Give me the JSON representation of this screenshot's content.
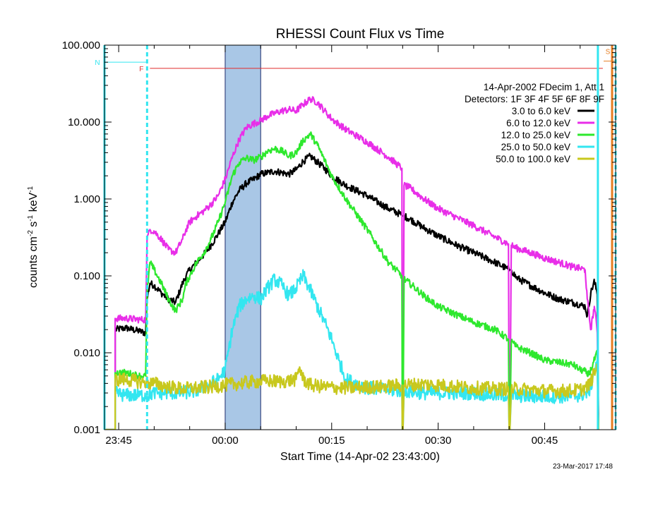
{
  "chart_data": {
    "type": "line",
    "title": "RHESSI Count Flux vs Time",
    "xlabel": "Start Time (14-Apr-02 23:43:00)",
    "ylabel_parts": [
      "counts cm",
      "-2",
      " s",
      "-1",
      " keV",
      "-1"
    ],
    "y_scale": "log",
    "ylim": [
      0.001,
      100
    ],
    "xlim": [
      -17,
      55
    ],
    "x_unit": "minutes relative to 00:00 (15-Apr-2002)",
    "x_ticks": [
      {
        "value": -15,
        "label": "23:45"
      },
      {
        "value": 0,
        "label": "00:00"
      },
      {
        "value": 15,
        "label": "00:15"
      },
      {
        "value": 30,
        "label": "00:30"
      },
      {
        "value": 45,
        "label": "00:45"
      }
    ],
    "y_ticks": [
      {
        "value": 0.001,
        "label": "0.001"
      },
      {
        "value": 0.01,
        "label": "0.010"
      },
      {
        "value": 0.1,
        "label": "0.100"
      },
      {
        "value": 1,
        "label": "1.000"
      },
      {
        "value": 10,
        "label": "10.000"
      },
      {
        "value": 100,
        "label": "100.000"
      }
    ],
    "info_lines": [
      "14-Apr-2002   FDecim 1, Att 1",
      "Detectors: 1F 3F 4F 5F 6F 8F 9F"
    ],
    "shaded_interval": {
      "x": [
        0,
        5
      ],
      "color": "#a9c7e6"
    },
    "markers": [
      {
        "label": "N",
        "color": "#33e6f0",
        "x": -17,
        "style": "solid"
      },
      {
        "label": "",
        "color": "#33e6f0",
        "x": -11,
        "style": "dashed"
      },
      {
        "label": "F",
        "color": "#e03030",
        "x": -11,
        "style": "line",
        "y": 50
      },
      {
        "label": "",
        "color": "#33e6f0",
        "x": 52.5,
        "style": "solid"
      },
      {
        "label": "S",
        "color": "#e67e22",
        "x": 54.5,
        "style": "solid"
      },
      {
        "label": "",
        "color": "#33e6f0",
        "x": 55,
        "style": "dashed"
      }
    ],
    "series": [
      {
        "name": "3.0 to 6.0 keV",
        "color": "#000000",
        "x": [
          -17,
          -15.5,
          -15.5,
          -14,
          -12,
          -11.2,
          -11,
          -10.6,
          -10,
          -9,
          -8,
          -7,
          -6,
          -5.5,
          -5,
          -4,
          -3,
          -2,
          -1,
          0,
          1,
          2,
          3,
          4,
          5,
          6,
          7,
          8,
          9,
          10,
          11,
          12,
          13,
          14,
          15,
          17,
          20,
          23,
          24.9,
          25,
          25.2,
          26,
          28,
          30,
          33,
          35,
          38,
          40,
          40.1,
          40.3,
          41,
          43,
          45,
          47,
          49,
          50,
          50.7,
          51,
          51.5,
          52,
          52.4,
          52.6
        ],
        "y": [
          0.001,
          0.001,
          0.02,
          0.021,
          0.019,
          0.018,
          0.05,
          0.08,
          0.075,
          0.06,
          0.05,
          0.045,
          0.08,
          0.1,
          0.12,
          0.15,
          0.19,
          0.25,
          0.35,
          0.5,
          0.9,
          1.3,
          1.6,
          1.8,
          2.1,
          2.2,
          2.3,
          2.2,
          2.1,
          2.4,
          3.1,
          3.6,
          3.0,
          2.5,
          2.0,
          1.5,
          1.1,
          0.75,
          0.62,
          0.6,
          0.6,
          0.55,
          0.42,
          0.33,
          0.24,
          0.2,
          0.15,
          0.12,
          0.12,
          0.12,
          0.095,
          0.075,
          0.06,
          0.05,
          0.045,
          0.042,
          0.04,
          0.03,
          0.06,
          0.085,
          0.06,
          0.001
        ]
      },
      {
        "name": "6.0 to 12.0 keV",
        "color": "#e82ee8",
        "x": [
          -17,
          -15.5,
          -15.5,
          -14,
          -12,
          -11.2,
          -11,
          -10.6,
          -10,
          -9,
          -8,
          -7,
          -6,
          -5.5,
          -5,
          -4,
          -3,
          -2,
          -1,
          0,
          1,
          2,
          3,
          4,
          5,
          6,
          7,
          8,
          9,
          10,
          11,
          12,
          13,
          14,
          15,
          17,
          20,
          23,
          24.9,
          24.95,
          25.05,
          25.2,
          26,
          28,
          30,
          33,
          35,
          38,
          39.9,
          40,
          40.1,
          40.3,
          41,
          43,
          45,
          47,
          49,
          50,
          50.7,
          51,
          51.5,
          52,
          52.4,
          52.6
        ],
        "y": [
          0.001,
          0.001,
          0.028,
          0.028,
          0.027,
          0.027,
          0.3,
          0.4,
          0.38,
          0.3,
          0.22,
          0.2,
          0.3,
          0.4,
          0.5,
          0.6,
          0.7,
          0.85,
          1.1,
          1.8,
          3.5,
          6,
          8.5,
          9.5,
          10.5,
          12,
          13,
          14,
          14.5,
          14,
          17,
          20,
          18,
          14,
          11,
          8,
          5.5,
          3.5,
          2.5,
          0.001,
          0.001,
          1.5,
          1.4,
          1.0,
          0.75,
          0.55,
          0.45,
          0.32,
          0.26,
          0.001,
          0.001,
          0.25,
          0.23,
          0.2,
          0.17,
          0.15,
          0.13,
          0.125,
          0.12,
          0.05,
          0.02,
          0.04,
          0.02,
          0.001
        ]
      },
      {
        "name": "12.0 to 25.0 keV",
        "color": "#2ee82e",
        "x": [
          -17,
          -15.5,
          -15.5,
          -14,
          -12,
          -11.2,
          -11,
          -10.6,
          -10,
          -9,
          -8,
          -7,
          -6,
          -5.5,
          -5,
          -4,
          -3,
          -2,
          -1,
          0,
          1,
          2,
          3,
          4,
          5,
          6,
          7,
          8,
          9,
          10,
          11,
          12,
          13,
          14,
          15,
          17,
          20,
          23,
          24.9,
          24.95,
          25.05,
          25.2,
          26,
          28,
          30,
          33,
          35,
          38,
          39.9,
          40,
          40.1,
          40.3,
          41,
          43,
          45,
          47,
          49,
          50,
          50.7,
          51,
          51.5,
          52,
          52.4,
          52.6
        ],
        "y": [
          0.001,
          0.001,
          0.0055,
          0.0055,
          0.005,
          0.005,
          0.06,
          0.15,
          0.12,
          0.08,
          0.05,
          0.035,
          0.05,
          0.08,
          0.1,
          0.15,
          0.2,
          0.3,
          0.5,
          0.9,
          2.0,
          3.0,
          3.4,
          3.2,
          3.5,
          4.2,
          4.5,
          4.2,
          3.6,
          4.0,
          5.8,
          7.0,
          5.0,
          3.2,
          2.0,
          1.0,
          0.4,
          0.15,
          0.1,
          0.001,
          0.001,
          0.09,
          0.08,
          0.055,
          0.04,
          0.03,
          0.025,
          0.02,
          0.015,
          0.001,
          0.001,
          0.014,
          0.012,
          0.01,
          0.008,
          0.0075,
          0.007,
          0.006,
          0.0058,
          0.005,
          0.006,
          0.008,
          0.01,
          0.001
        ]
      },
      {
        "name": "25.0 to 50.0 keV",
        "color": "#33e6f0",
        "x": [
          -17,
          -15.5,
          -15.5,
          -14,
          -12,
          -11,
          -10,
          -8,
          -6,
          -4,
          -2,
          -1,
          0,
          1,
          2,
          3,
          4,
          5,
          6,
          7,
          8,
          9,
          10,
          11,
          12,
          13,
          14,
          15,
          16,
          17,
          20,
          23,
          24.9,
          24.95,
          25.05,
          25.2,
          28,
          30,
          33,
          35,
          38,
          39.9,
          40,
          40.1,
          40.3,
          43,
          45,
          48,
          50,
          51,
          51.5,
          52,
          52.4,
          52.6
        ],
        "y": [
          0.001,
          0.001,
          0.003,
          0.0028,
          0.0028,
          0.0028,
          0.003,
          0.003,
          0.003,
          0.0032,
          0.004,
          0.0045,
          0.006,
          0.02,
          0.04,
          0.05,
          0.055,
          0.05,
          0.07,
          0.09,
          0.075,
          0.055,
          0.07,
          0.1,
          0.065,
          0.04,
          0.025,
          0.015,
          0.008,
          0.0045,
          0.0035,
          0.0033,
          0.0032,
          0.001,
          0.001,
          0.0032,
          0.003,
          0.003,
          0.003,
          0.003,
          0.0028,
          0.0028,
          0.001,
          0.001,
          0.0028,
          0.0027,
          0.0027,
          0.0027,
          0.0028,
          0.003,
          0.0035,
          0.006,
          0.007,
          0.001
        ]
      },
      {
        "name": "50.0 to 100.0 keV",
        "color": "#c8c81e",
        "x": [
          -17,
          -15.5,
          -15.5,
          -14,
          -12,
          -10,
          -8,
          -6,
          -4,
          -2,
          0,
          2,
          4,
          6,
          8,
          10,
          10.5,
          11,
          12,
          14,
          16,
          18,
          20,
          22,
          24.9,
          24.95,
          25.05,
          25.2,
          28,
          30,
          33,
          35,
          38,
          39.9,
          40,
          40.1,
          40.3,
          43,
          45,
          48,
          50,
          51,
          51.5,
          52,
          52.4,
          52.6
        ],
        "y": [
          0.001,
          0.001,
          0.0045,
          0.0045,
          0.0042,
          0.004,
          0.0036,
          0.0034,
          0.0035,
          0.0036,
          0.0038,
          0.004,
          0.0042,
          0.0043,
          0.0042,
          0.0045,
          0.0065,
          0.0045,
          0.0038,
          0.0036,
          0.0035,
          0.0035,
          0.0036,
          0.0036,
          0.0038,
          0.001,
          0.001,
          0.0038,
          0.0039,
          0.0038,
          0.0036,
          0.0035,
          0.0034,
          0.0034,
          0.001,
          0.001,
          0.0034,
          0.0033,
          0.0032,
          0.0032,
          0.0033,
          0.0036,
          0.0042,
          0.0055,
          0.0065,
          0.001
        ]
      }
    ]
  },
  "footer": {
    "timestamp": "23-Mar-2017 17:48"
  }
}
